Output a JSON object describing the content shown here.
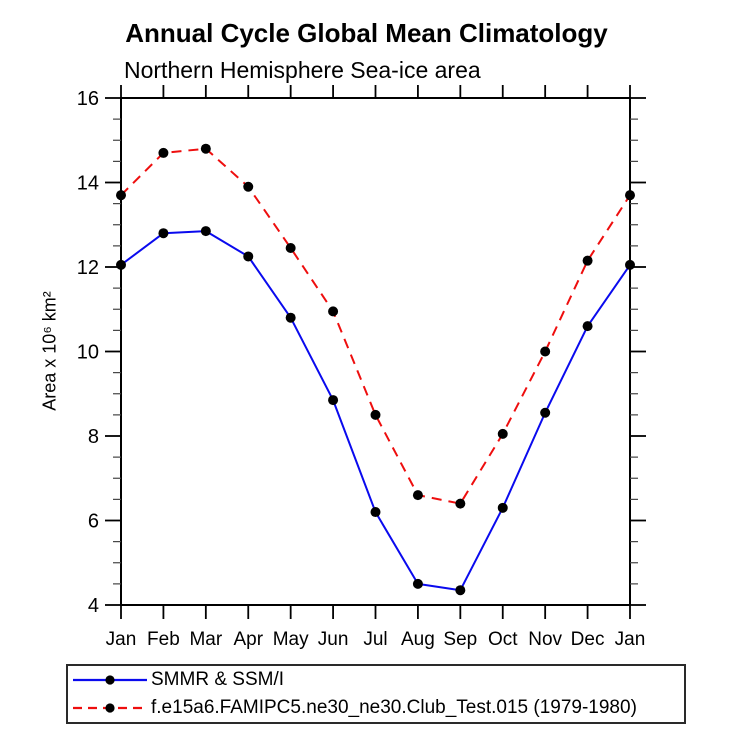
{
  "chart": {
    "title": "Annual Cycle Global Mean Climatology",
    "subtitle": "Northern Hemisphere Sea-ice area",
    "ylabel_display": "Area x 10⁶ km²"
  },
  "chart_data": {
    "type": "line",
    "title": "Annual Cycle Global Mean Climatology",
    "subtitle": "Northern Hemisphere Sea-ice area",
    "xlabel": "",
    "ylabel": "Area x 10^6 km^2",
    "categories": [
      "Jan",
      "Feb",
      "Mar",
      "Apr",
      "May",
      "Jun",
      "Jul",
      "Aug",
      "Sep",
      "Oct",
      "Nov",
      "Dec",
      "Jan"
    ],
    "ylim": [
      4,
      16
    ],
    "y_major_step": 2,
    "y_minor_step": 0.5,
    "grid": false,
    "legend_position": "bottom-left-box",
    "marker": {
      "shape": "circle",
      "color": "#000000",
      "radius": 5
    },
    "axis_color": "#000000",
    "series": [
      {
        "name": "SMMR & SSM/I",
        "color": "#0a0aee",
        "style": "solid",
        "values": [
          12.05,
          12.8,
          12.85,
          12.25,
          10.8,
          8.85,
          6.2,
          4.5,
          4.35,
          6.3,
          8.55,
          10.6,
          12.05
        ]
      },
      {
        "name": "f.e15a6.FAMIPC5.ne30_ne30.Club_Test.015 (1979-1980)",
        "color": "#ee0e0e",
        "style": "dashed",
        "values": [
          13.7,
          14.7,
          14.8,
          13.9,
          12.45,
          10.95,
          8.5,
          6.6,
          6.4,
          8.05,
          10.0,
          12.15,
          13.7
        ]
      }
    ]
  }
}
